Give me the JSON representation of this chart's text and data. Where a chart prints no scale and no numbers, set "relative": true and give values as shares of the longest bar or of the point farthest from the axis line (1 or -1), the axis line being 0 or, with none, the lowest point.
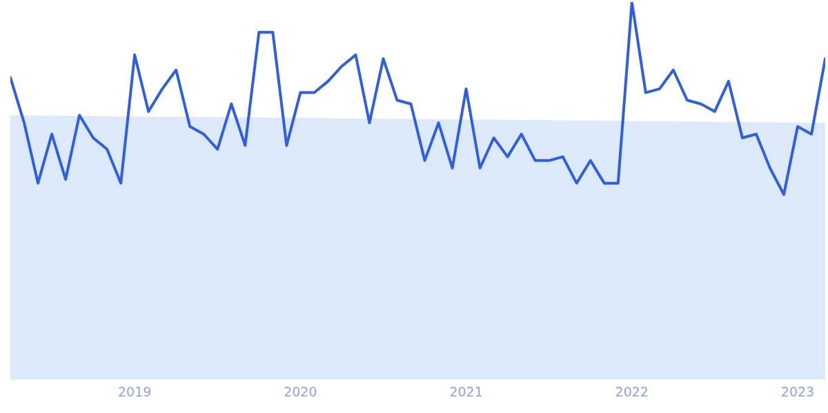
{
  "chart_data": {
    "type": "line",
    "relative": true,
    "marker": "none",
    "line_style": "solid",
    "legend": false,
    "xlim": [
      "2018-04",
      "2023-03"
    ],
    "xticks": [
      "2019",
      "2020",
      "2021",
      "2022",
      "2023"
    ],
    "series": [
      {
        "type": "area",
        "color": "#dbe9fb",
        "x": [
          "2018-04",
          "2023-03"
        ],
        "values": [
          0.7,
          0.68
        ]
      },
      {
        "color": "#2f5fe0",
        "x": [
          "2018-04",
          "2018-05",
          "2018-06",
          "2018-07",
          "2018-08",
          "2018-09",
          "2018-10",
          "2018-11",
          "2018-12",
          "2019-01",
          "2019-02",
          "2019-03",
          "2019-04",
          "2019-05",
          "2019-06",
          "2019-07",
          "2019-08",
          "2019-09",
          "2019-10",
          "2019-11",
          "2019-12",
          "2020-01",
          "2020-02",
          "2020-03",
          "2020-04",
          "2020-05",
          "2020-06",
          "2020-07",
          "2020-08",
          "2020-09",
          "2020-10",
          "2020-11",
          "2020-12",
          "2021-01",
          "2021-02",
          "2021-03",
          "2021-04",
          "2021-05",
          "2021-06",
          "2021-07",
          "2021-08",
          "2021-09",
          "2021-10",
          "2021-11",
          "2021-12",
          "2022-01",
          "2022-02",
          "2022-03",
          "2022-04",
          "2022-05",
          "2022-06",
          "2022-07",
          "2022-08",
          "2022-09",
          "2022-10",
          "2022-11",
          "2022-12",
          "2023-01",
          "2023-02",
          "2023-03"
        ],
        "values": [
          0.8,
          0.68,
          0.52,
          0.65,
          0.53,
          0.7,
          0.64,
          0.61,
          0.52,
          0.86,
          0.71,
          0.77,
          0.82,
          0.67,
          0.65,
          0.61,
          0.73,
          0.62,
          0.92,
          0.92,
          0.62,
          0.76,
          0.76,
          0.79,
          0.83,
          0.86,
          0.68,
          0.85,
          0.74,
          0.73,
          0.58,
          0.68,
          0.56,
          0.77,
          0.56,
          0.64,
          0.59,
          0.65,
          0.58,
          0.58,
          0.59,
          0.52,
          0.58,
          0.52,
          0.52,
          1,
          0.76,
          0.77,
          0.82,
          0.74,
          0.73,
          0.71,
          0.79,
          0.64,
          0.65,
          0.56,
          0.49,
          0.67,
          0.65,
          0.85
        ]
      }
    ]
  }
}
